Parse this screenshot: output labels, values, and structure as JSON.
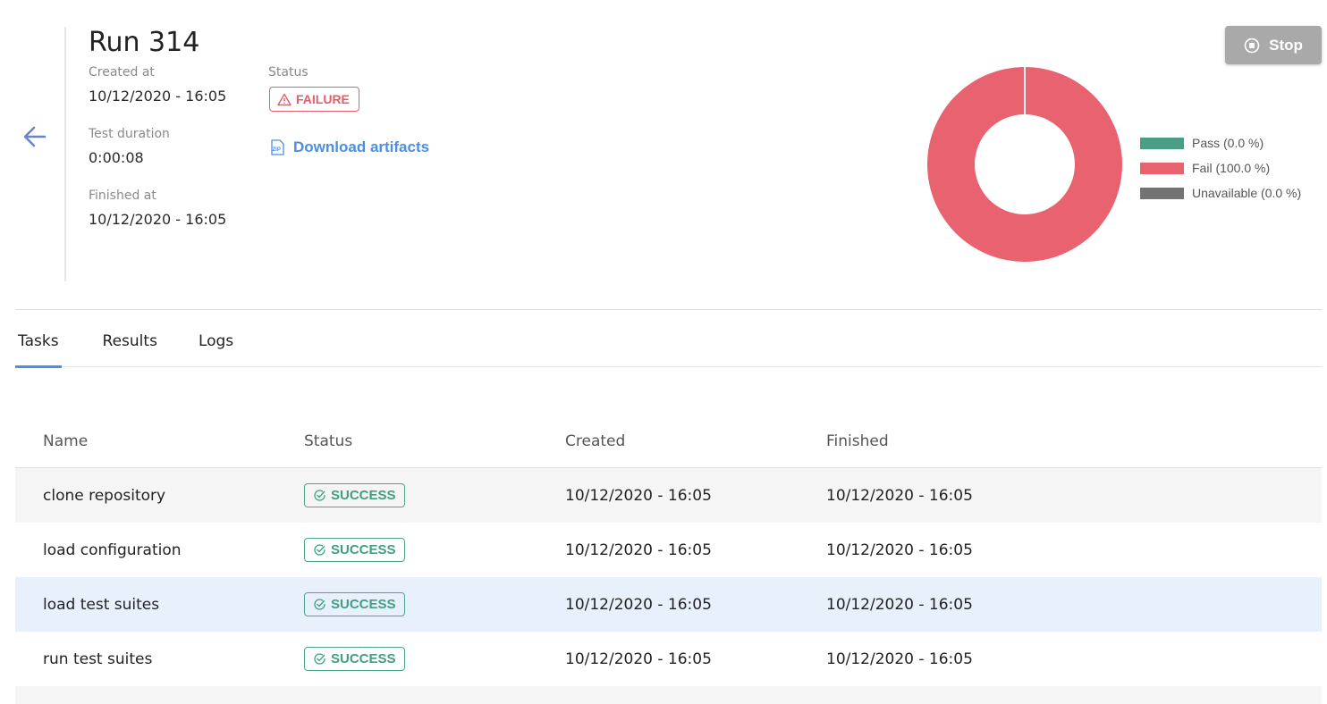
{
  "header": {
    "title": "Run 314",
    "created_label": "Created at",
    "created_value": "10/12/2020 - 16:05",
    "duration_label": "Test duration",
    "duration_value": "0:00:08",
    "finished_label": "Finished at",
    "finished_value": "10/12/2020 - 16:05",
    "status_label": "Status",
    "status_value": "FAILURE",
    "download_label": "Download artifacts",
    "stop_label": "Stop"
  },
  "colors": {
    "pass": "#4a9e86",
    "fail": "#e8636f",
    "unavailable": "#737373",
    "accent": "#4a8fe6"
  },
  "chart_data": {
    "type": "pie",
    "donut": true,
    "categories": [
      "Pass",
      "Fail",
      "Unavailable"
    ],
    "values": [
      0.0,
      100.0,
      0.0
    ],
    "legend": [
      "Pass (0.0 %)",
      "Fail (100.0 %)",
      "Unavailable (0.0 %)"
    ],
    "legend_placement": "right"
  },
  "tabs": [
    {
      "label": "Tasks",
      "active": true
    },
    {
      "label": "Results"
    },
    {
      "label": "Logs"
    }
  ],
  "table": {
    "columns": [
      "Name",
      "Status",
      "Created",
      "Finished"
    ],
    "rows": [
      {
        "name": "clone repository",
        "status": "SUCCESS",
        "created": "10/12/2020 - 16:05",
        "finished": "10/12/2020 - 16:05"
      },
      {
        "name": "load configuration",
        "status": "SUCCESS",
        "created": "10/12/2020 - 16:05",
        "finished": "10/12/2020 - 16:05"
      },
      {
        "name": "load test suites",
        "status": "SUCCESS",
        "created": "10/12/2020 - 16:05",
        "finished": "10/12/2020 - 16:05"
      },
      {
        "name": "run test suites",
        "status": "SUCCESS",
        "created": "10/12/2020 - 16:05",
        "finished": "10/12/2020 - 16:05"
      }
    ]
  }
}
